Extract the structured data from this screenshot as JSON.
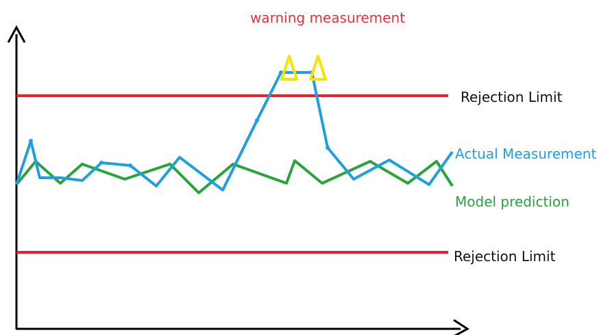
{
  "title": "warning measurement",
  "upper_limit_label": "Rejection Limit",
  "lower_limit_label": "Rejection Limit",
  "actual_label": "Actual Measurement",
  "model_label": "Model prediction",
  "colors": {
    "title": "#e8313c",
    "limit": "#e8202e",
    "actual": "#1ea0e0",
    "model": "#27a43a",
    "warning": "#f2e600",
    "axis": "#000000",
    "text": "#111111"
  },
  "icons": [
    "warning-triangle-icon",
    "warning-triangle-icon",
    "arrow-up-icon",
    "arrow-right-icon"
  ]
}
